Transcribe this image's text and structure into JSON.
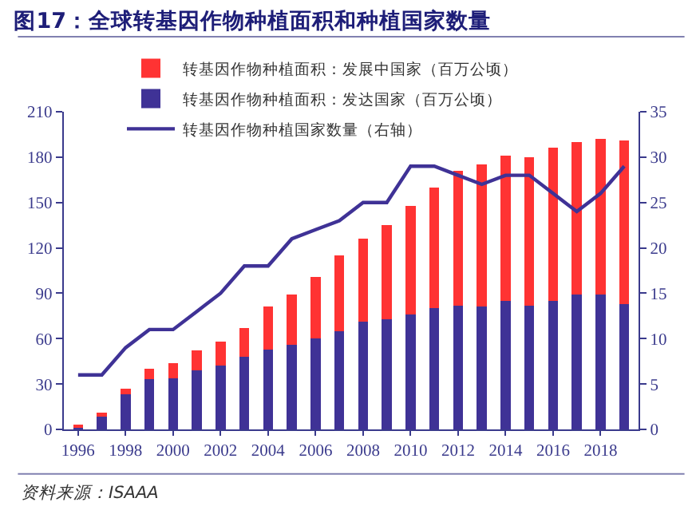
{
  "chart_data": {
    "type": "bar",
    "title": "图17：全球转基因作物种植面积和种植国家数量",
    "x": [
      1996,
      1997,
      1998,
      1999,
      2000,
      2001,
      2002,
      2003,
      2004,
      2005,
      2006,
      2007,
      2008,
      2009,
      2010,
      2011,
      2012,
      2013,
      2014,
      2015,
      2016,
      2017,
      2018,
      2019
    ],
    "series": [
      {
        "name": "转基因作物种植面积：发达国家（百万公顷）",
        "color": "#3f3296",
        "values": [
          2,
          9,
          23,
          33,
          34,
          39,
          42,
          48,
          53,
          56,
          60,
          65,
          71,
          73,
          76,
          80,
          82,
          81,
          85,
          82,
          85,
          89,
          89,
          83
        ]
      },
      {
        "name": "转基因作物种植面积：发展中国家（百万公顷）",
        "color": "#ff3333",
        "values": [
          1,
          2,
          4,
          7,
          10,
          13,
          16,
          19,
          28,
          33,
          41,
          50,
          55,
          62,
          72,
          80,
          89,
          94,
          96,
          98,
          101,
          101,
          103,
          108
        ]
      },
      {
        "name": "转基因作物种植国家数量（右轴）",
        "type": "line",
        "axis": "y2",
        "color": "#3f3296",
        "values": [
          6,
          6,
          9,
          11,
          11,
          13,
          15,
          18,
          18,
          21,
          22,
          23,
          25,
          25,
          29,
          29,
          28,
          27,
          28,
          28,
          26,
          24,
          26,
          29
        ]
      }
    ],
    "stacked": true,
    "xlim": [
      1995.4,
      2019.6
    ],
    "xticks": [
      1996,
      1998,
      2000,
      2002,
      2004,
      2006,
      2008,
      2010,
      2012,
      2014,
      2016,
      2018
    ],
    "ylim": [
      0,
      210
    ],
    "yticks": [
      0,
      30,
      60,
      90,
      120,
      150,
      180,
      210
    ],
    "y2lim": [
      0,
      35
    ],
    "y2ticks": [
      0,
      5,
      10,
      15,
      20,
      25,
      30,
      35
    ],
    "legend": "top",
    "grid": false,
    "marker": "none",
    "line_style": "solid",
    "annotations": [
      "资料来源：ISAAA"
    ]
  }
}
